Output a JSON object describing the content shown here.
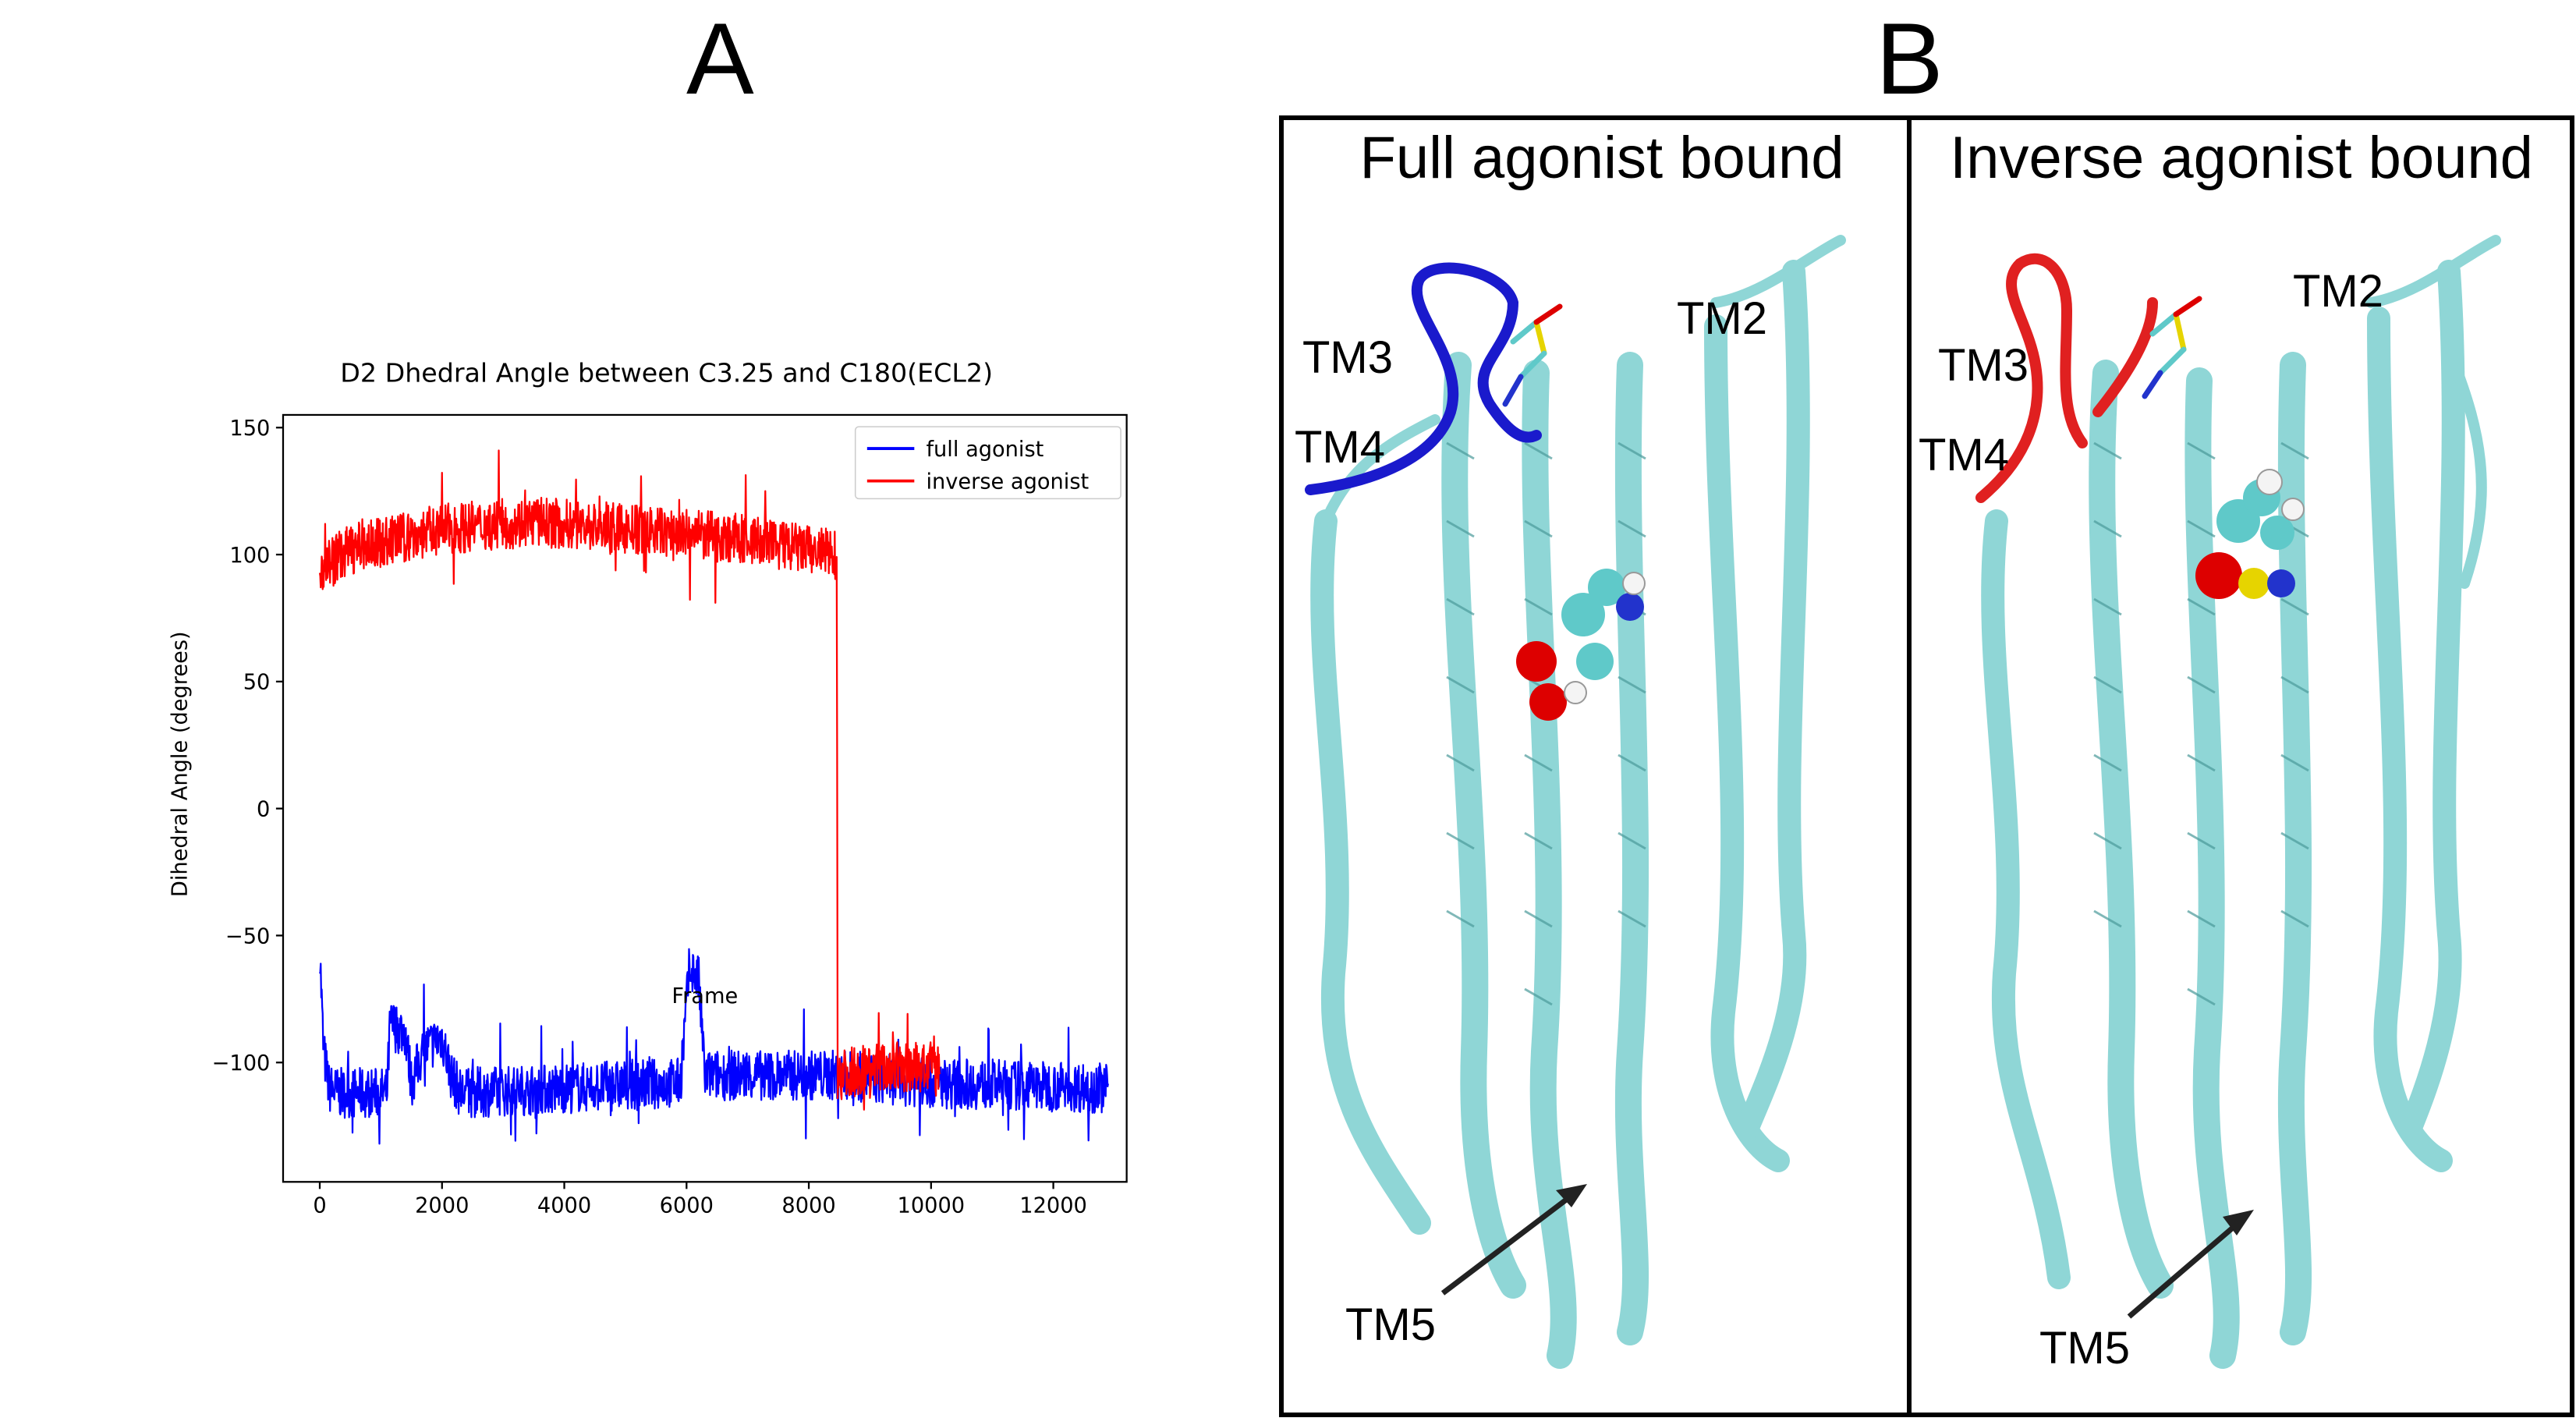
{
  "panels": {
    "a": "A",
    "b": "B"
  },
  "chart_data": {
    "type": "line",
    "title": "D2 Dhedral Angle between C3.25 and C180(ECL2)",
    "xlabel": "Frame",
    "ylabel": "Dihedral Angle (degrees)",
    "xlim": [
      -600,
      13200
    ],
    "ylim": [
      -147,
      155
    ],
    "xticks": [
      0,
      2000,
      4000,
      6000,
      8000,
      10000,
      12000
    ],
    "yticks": [
      150,
      100,
      50,
      0,
      -50,
      -100
    ],
    "legend_position": "upper right",
    "grid": false,
    "series": [
      {
        "name": "full agonist",
        "color": "#0000ff",
        "x_start": 0,
        "x_end": 12900,
        "baseline": [
          [
            0,
            -55
          ],
          [
            60,
            -95
          ],
          [
            150,
            -110
          ],
          [
            300,
            -112
          ],
          [
            1100,
            -112
          ],
          [
            1150,
            -85
          ],
          [
            1400,
            -88
          ],
          [
            1500,
            -108
          ],
          [
            1700,
            -95
          ],
          [
            2000,
            -90
          ],
          [
            2150,
            -105
          ],
          [
            2300,
            -112
          ],
          [
            5900,
            -108
          ],
          [
            6050,
            -62
          ],
          [
            6200,
            -68
          ],
          [
            6300,
            -105
          ],
          [
            8500,
            -105
          ],
          [
            10000,
            -108
          ],
          [
            12900,
            -110
          ]
        ],
        "noise": 10,
        "spike_envelope": {
          "min": -132,
          "max": -45
        }
      },
      {
        "name": "inverse agonist",
        "color": "#ff0000",
        "x_start": 0,
        "x_end": 10150,
        "baseline": [
          [
            0,
            95
          ],
          [
            500,
            102
          ],
          [
            2000,
            110
          ],
          [
            3500,
            113
          ],
          [
            5000,
            110
          ],
          [
            7000,
            106
          ],
          [
            8400,
            100
          ],
          [
            8460,
            100
          ],
          [
            8470,
            -105
          ],
          [
            9000,
            -102
          ],
          [
            10150,
            -102
          ]
        ],
        "noise": 10,
        "spike_envelope": {
          "min": -132,
          "max": 142
        }
      }
    ]
  },
  "panel_b": {
    "left_title": "Full agonist bound",
    "right_title": "Inverse agonist bound",
    "left_labels": {
      "tm3": "TM3",
      "tm4": "TM4",
      "tm2": "TM2",
      "tm5": "TM5"
    },
    "right_labels": {
      "tm3": "TM3",
      "tm4": "TM4",
      "tm2": "TM2",
      "tm5": "TM5"
    },
    "colors": {
      "helix": "#8fd6d6",
      "helix_edge": "#4a9a9a",
      "ecl2_full": "#1a1acc",
      "ecl2_inverse": "#e02020",
      "ligand": "#5fc9c9",
      "oxygen": "#dd0000",
      "nitrogen": "#2233cc",
      "hydrogen": "#f4f4f4"
    }
  }
}
